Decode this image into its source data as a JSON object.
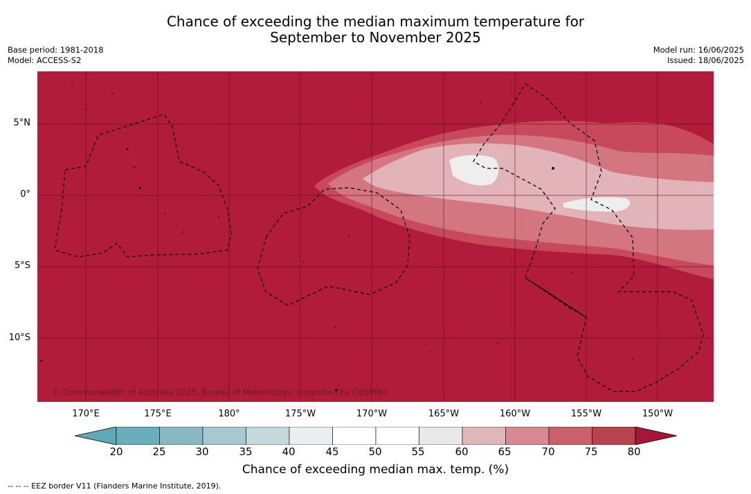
{
  "header": {
    "title_line1": "Chance of exceeding the median maximum temperature for",
    "title_line2": "September to November 2025",
    "base_period": "Base period: 1981-2018",
    "model": "Model: ACCESS-S2",
    "model_run": "Model run: 16/06/2025",
    "issued": "Issued: 18/06/2025"
  },
  "map": {
    "lat_labels": [
      "5°N",
      "0°",
      "5°S",
      "10°S"
    ],
    "lon_labels": [
      "170°E",
      "175°E",
      "180°",
      "175°W",
      "170°W",
      "165°W",
      "160°W",
      "155°W",
      "150°W"
    ],
    "copyright": "© Commonwealth of Australia 2025, Bureau of Meteorology, supported by COSPPac",
    "colors": {
      "background": "#b01c39",
      "band_75": "#c8485c",
      "band_70": "#d47680",
      "band_65": "#e2b3b8",
      "band_60": "#eeeeee",
      "border": "#000000"
    }
  },
  "colorbar": {
    "ticks": [
      "20",
      "25",
      "30",
      "35",
      "40",
      "45",
      "50",
      "55",
      "60",
      "65",
      "70",
      "75",
      "80"
    ],
    "colors": [
      "#5fa8b7",
      "#6aaebd",
      "#89b8c3",
      "#a8c8cf",
      "#c5d9dd",
      "#e9eff1",
      "#ffffff",
      "#ffffff",
      "#e9e9e9",
      "#dfb6ba",
      "#d88891",
      "#c9606c",
      "#b9424f",
      "#a6163a"
    ],
    "label": "Chance of exceeding median max. temp. (%)"
  },
  "footnote": "--  --  -- EEZ border V11 (Flanders Marine Institute, 2019)."
}
